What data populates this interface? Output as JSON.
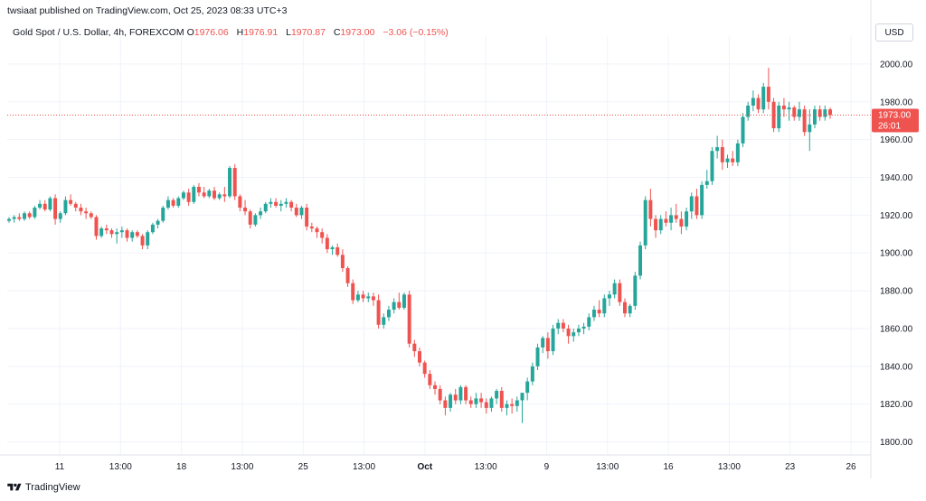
{
  "header": {
    "publisher_line": "twsiaat published on TradingView.com, Oct 25, 2023 08:33 UTC+3"
  },
  "symbol": {
    "name": "Gold Spot / U.S. Dollar, 4h, FOREXCOM",
    "open_label": "O",
    "open": "1976.06",
    "high_label": "H",
    "high": "1976.91",
    "low_label": "L",
    "low": "1970.87",
    "close_label": "C",
    "close": "1973.00",
    "change": "−3.06 (−0.15%)"
  },
  "currency_button": "USD",
  "last_price": {
    "price": "1973.00",
    "countdown": "26:01",
    "color": "#ef5350"
  },
  "footer": {
    "brand": "TradingView"
  },
  "colors": {
    "up": "#26a69a",
    "down": "#ef5350",
    "grid": "#f0f3fa",
    "axis": "#e0e3eb"
  },
  "chart_data": {
    "type": "candlestick",
    "y_axis": {
      "min": 1795,
      "max": 2010,
      "ticks": [
        "2000.00",
        "1980.00",
        "1960.00",
        "1940.00",
        "1920.00",
        "1900.00",
        "1880.00",
        "1860.00",
        "1840.00",
        "1820.00",
        "1800.00"
      ]
    },
    "x_axis_labels": [
      "11",
      "13:00",
      "18",
      "13:00",
      "25",
      "13:00",
      "Oct",
      "13:00",
      "9",
      "13:00",
      "16",
      "13:00",
      "23",
      "26"
    ],
    "candles_ohlc": [
      [
        1917,
        1919,
        1916,
        1918
      ],
      [
        1918,
        1920,
        1916,
        1919
      ],
      [
        1919,
        1921,
        1917,
        1918
      ],
      [
        1918,
        1922,
        1917,
        1921
      ],
      [
        1921,
        1922,
        1918,
        1919
      ],
      [
        1919,
        1925,
        1918,
        1924
      ],
      [
        1924,
        1928,
        1923,
        1926
      ],
      [
        1926,
        1928,
        1922,
        1923
      ],
      [
        1923,
        1930,
        1922,
        1929
      ],
      [
        1929,
        1931,
        1915,
        1918
      ],
      [
        1918,
        1922,
        1916,
        1921
      ],
      [
        1921,
        1930,
        1920,
        1928
      ],
      [
        1928,
        1931,
        1925,
        1926
      ],
      [
        1926,
        1927,
        1922,
        1924
      ],
      [
        1924,
        1926,
        1920,
        1922
      ],
      [
        1922,
        1924,
        1918,
        1921
      ],
      [
        1921,
        1922,
        1918,
        1919
      ],
      [
        1919,
        1920,
        1907,
        1909
      ],
      [
        1909,
        1914,
        1908,
        1913
      ],
      [
        1913,
        1915,
        1910,
        1912
      ],
      [
        1912,
        1913,
        1908,
        1910
      ],
      [
        1910,
        1913,
        1905,
        1911
      ],
      [
        1911,
        1914,
        1908,
        1912
      ],
      [
        1912,
        1913,
        1906,
        1908
      ],
      [
        1908,
        1912,
        1906,
        1911
      ],
      [
        1911,
        1912,
        1908,
        1909
      ],
      [
        1909,
        1910,
        1902,
        1904
      ],
      [
        1904,
        1912,
        1902,
        1911
      ],
      [
        1911,
        1916,
        1910,
        1915
      ],
      [
        1915,
        1918,
        1913,
        1917
      ],
      [
        1917,
        1925,
        1916,
        1924
      ],
      [
        1924,
        1930,
        1923,
        1928
      ],
      [
        1928,
        1929,
        1924,
        1925
      ],
      [
        1925,
        1930,
        1924,
        1929
      ],
      [
        1929,
        1933,
        1928,
        1932
      ],
      [
        1932,
        1934,
        1925,
        1927
      ],
      [
        1927,
        1936,
        1926,
        1935
      ],
      [
        1935,
        1937,
        1930,
        1932
      ],
      [
        1932,
        1935,
        1929,
        1930
      ],
      [
        1930,
        1934,
        1929,
        1933
      ],
      [
        1933,
        1935,
        1928,
        1929
      ],
      [
        1929,
        1932,
        1928,
        1931
      ],
      [
        1931,
        1935,
        1927,
        1930
      ],
      [
        1930,
        1946,
        1929,
        1945
      ],
      [
        1945,
        1947,
        1928,
        1930
      ],
      [
        1930,
        1931,
        1922,
        1924
      ],
      [
        1924,
        1928,
        1920,
        1922
      ],
      [
        1922,
        1923,
        1913,
        1915
      ],
      [
        1915,
        1921,
        1914,
        1920
      ],
      [
        1920,
        1924,
        1918,
        1922
      ],
      [
        1922,
        1927,
        1921,
        1926
      ],
      [
        1926,
        1929,
        1924,
        1927
      ],
      [
        1927,
        1929,
        1924,
        1925
      ],
      [
        1925,
        1928,
        1922,
        1926
      ],
      [
        1926,
        1929,
        1924,
        1927
      ],
      [
        1927,
        1928,
        1922,
        1924
      ],
      [
        1924,
        1926,
        1919,
        1920
      ],
      [
        1920,
        1925,
        1918,
        1924
      ],
      [
        1924,
        1926,
        1912,
        1914
      ],
      [
        1914,
        1916,
        1911,
        1913
      ],
      [
        1913,
        1914,
        1908,
        1911
      ],
      [
        1911,
        1913,
        1905,
        1908
      ],
      [
        1908,
        1910,
        1900,
        1902
      ],
      [
        1902,
        1904,
        1899,
        1903
      ],
      [
        1903,
        1905,
        1898,
        1899
      ],
      [
        1899,
        1902,
        1890,
        1892
      ],
      [
        1892,
        1893,
        1882,
        1884
      ],
      [
        1884,
        1886,
        1873,
        1875
      ],
      [
        1875,
        1880,
        1874,
        1878
      ],
      [
        1878,
        1880,
        1874,
        1876
      ],
      [
        1876,
        1879,
        1874,
        1877
      ],
      [
        1877,
        1879,
        1872,
        1875
      ],
      [
        1875,
        1878,
        1860,
        1862
      ],
      [
        1862,
        1868,
        1860,
        1866
      ],
      [
        1866,
        1872,
        1864,
        1870
      ],
      [
        1870,
        1876,
        1868,
        1874
      ],
      [
        1874,
        1879,
        1870,
        1871
      ],
      [
        1871,
        1879,
        1870,
        1878
      ],
      [
        1878,
        1880,
        1850,
        1852
      ],
      [
        1852,
        1854,
        1845,
        1848
      ],
      [
        1848,
        1850,
        1840,
        1842
      ],
      [
        1842,
        1843,
        1834,
        1836
      ],
      [
        1836,
        1838,
        1828,
        1830
      ],
      [
        1830,
        1832,
        1825,
        1828
      ],
      [
        1828,
        1830,
        1820,
        1822
      ],
      [
        1822,
        1824,
        1814,
        1818
      ],
      [
        1818,
        1826,
        1816,
        1825
      ],
      [
        1825,
        1828,
        1820,
        1822
      ],
      [
        1822,
        1830,
        1820,
        1829
      ],
      [
        1829,
        1830,
        1820,
        1822
      ],
      [
        1822,
        1824,
        1818,
        1820
      ],
      [
        1820,
        1826,
        1818,
        1823
      ],
      [
        1823,
        1826,
        1818,
        1821
      ],
      [
        1821,
        1823,
        1815,
        1818
      ],
      [
        1818,
        1824,
        1816,
        1823
      ],
      [
        1823,
        1828,
        1820,
        1827
      ],
      [
        1827,
        1829,
        1816,
        1818
      ],
      [
        1818,
        1822,
        1814,
        1820
      ],
      [
        1820,
        1823,
        1815,
        1819
      ],
      [
        1819,
        1824,
        1816,
        1822
      ],
      [
        1822,
        1826,
        1810,
        1826
      ],
      [
        1826,
        1834,
        1822,
        1832
      ],
      [
        1832,
        1842,
        1830,
        1840
      ],
      [
        1840,
        1852,
        1838,
        1850
      ],
      [
        1850,
        1856,
        1847,
        1855
      ],
      [
        1855,
        1858,
        1844,
        1848
      ],
      [
        1848,
        1862,
        1846,
        1860
      ],
      [
        1860,
        1865,
        1857,
        1863
      ],
      [
        1863,
        1865,
        1858,
        1860
      ],
      [
        1860,
        1862,
        1852,
        1856
      ],
      [
        1856,
        1860,
        1853,
        1858
      ],
      [
        1858,
        1862,
        1856,
        1860
      ],
      [
        1860,
        1863,
        1857,
        1861
      ],
      [
        1861,
        1868,
        1859,
        1866
      ],
      [
        1866,
        1872,
        1864,
        1870
      ],
      [
        1870,
        1875,
        1866,
        1868
      ],
      [
        1868,
        1878,
        1866,
        1876
      ],
      [
        1876,
        1880,
        1872,
        1878
      ],
      [
        1878,
        1886,
        1876,
        1884
      ],
      [
        1884,
        1886,
        1872,
        1874
      ],
      [
        1874,
        1876,
        1866,
        1868
      ],
      [
        1868,
        1873,
        1866,
        1872
      ],
      [
        1872,
        1890,
        1870,
        1888
      ],
      [
        1888,
        1906,
        1886,
        1904
      ],
      [
        1904,
        1930,
        1902,
        1928
      ],
      [
        1928,
        1934,
        1914,
        1918
      ],
      [
        1918,
        1920,
        1908,
        1912
      ],
      [
        1912,
        1920,
        1910,
        1918
      ],
      [
        1918,
        1922,
        1914,
        1916
      ],
      [
        1916,
        1924,
        1912,
        1920
      ],
      [
        1920,
        1926,
        1916,
        1918
      ],
      [
        1918,
        1922,
        1910,
        1914
      ],
      [
        1914,
        1924,
        1912,
        1922
      ],
      [
        1922,
        1932,
        1918,
        1930
      ],
      [
        1930,
        1934,
        1918,
        1920
      ],
      [
        1920,
        1938,
        1918,
        1936
      ],
      [
        1936,
        1944,
        1934,
        1938
      ],
      [
        1938,
        1956,
        1936,
        1954
      ],
      [
        1954,
        1962,
        1950,
        1956
      ],
      [
        1956,
        1960,
        1944,
        1948
      ],
      [
        1948,
        1952,
        1945,
        1950
      ],
      [
        1950,
        1954,
        1946,
        1948
      ],
      [
        1948,
        1960,
        1946,
        1958
      ],
      [
        1958,
        1974,
        1956,
        1972
      ],
      [
        1972,
        1980,
        1970,
        1978
      ],
      [
        1978,
        1986,
        1975,
        1982
      ],
      [
        1982,
        1984,
        1974,
        1976
      ],
      [
        1976,
        1990,
        1974,
        1988
      ],
      [
        1988,
        1998,
        1976,
        1980
      ],
      [
        1980,
        1982,
        1964,
        1966
      ],
      [
        1966,
        1980,
        1964,
        1978
      ],
      [
        1978,
        1982,
        1972,
        1976
      ],
      [
        1976,
        1980,
        1970,
        1977
      ],
      [
        1977,
        1978,
        1970,
        1972
      ],
      [
        1972,
        1980,
        1970,
        1976
      ],
      [
        1976,
        1978,
        1962,
        1964
      ],
      [
        1964,
        1976,
        1954,
        1968
      ],
      [
        1968,
        1978,
        1966,
        1976
      ],
      [
        1976,
        1978,
        1970,
        1972
      ],
      [
        1972,
        1978,
        1970,
        1976
      ],
      [
        1976,
        1977,
        1971,
        1973
      ]
    ]
  }
}
